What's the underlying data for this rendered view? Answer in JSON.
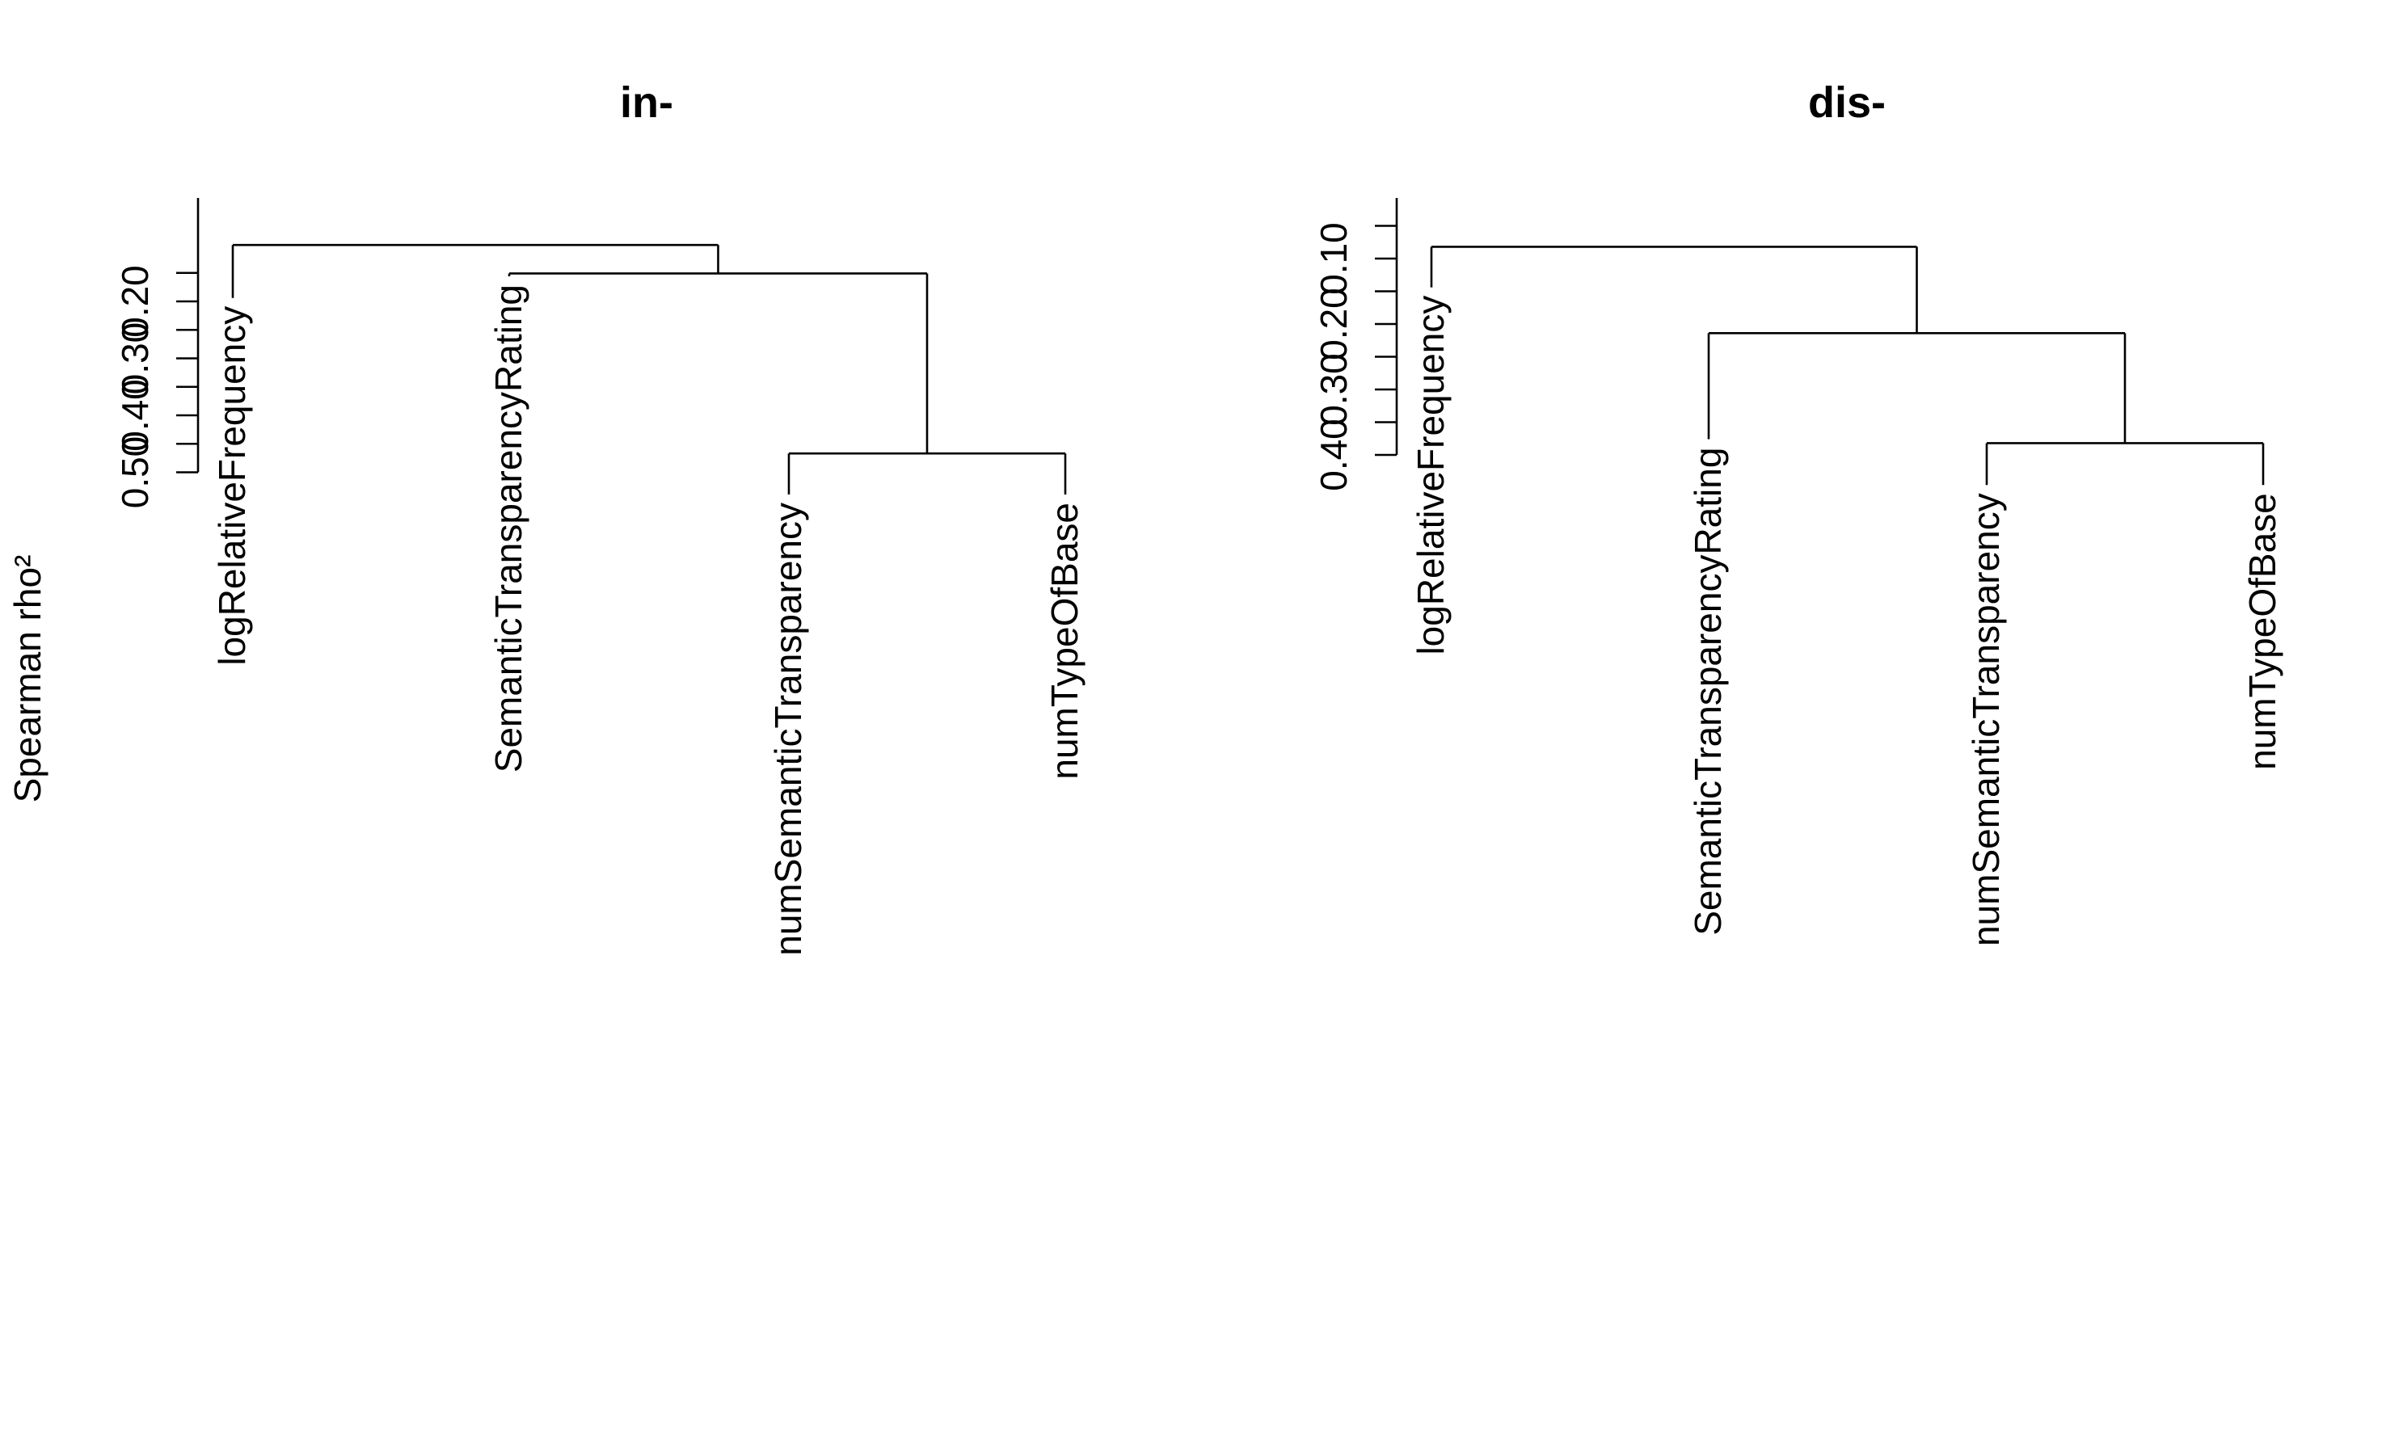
{
  "ylabel": "Spearman rho²",
  "chart_data": [
    {
      "type": "dendrogram",
      "title": "in-",
      "ylabel": "Spearman rho²",
      "y_axis_ticks": [
        "0.20",
        "0.30",
        "0.40",
        "0.50"
      ],
      "leaves": [
        "logRelativeFrequency",
        "SemanticTransparencyRating",
        "numSemanticTransparency",
        "numTypeOfBase"
      ],
      "merges": [
        {
          "left": "numSemanticTransparency",
          "right": "numTypeOfBase",
          "height": 0.467
        },
        {
          "left": "SemanticTransparencyRating",
          "right": "cluster(numSemanticTransparency, numTypeOfBase)",
          "height": 0.151
        },
        {
          "left": "logRelativeFrequency",
          "right": "cluster(SemanticTransparencyRating, numSemanticTransparency, numTypeOfBase)",
          "height": 0.101
        }
      ],
      "leaf_heights": [
        0.194,
        0.156,
        0.539,
        0.539
      ]
    },
    {
      "type": "dendrogram",
      "title": "dis-",
      "ylabel": "Spearman rho²",
      "y_axis_ticks": [
        "0.10",
        "0.20",
        "0.30",
        "0.40"
      ],
      "leaves": [
        "logRelativeFrequency",
        "SemanticTransparencyRating",
        "numSemanticTransparency",
        "numTypeOfBase"
      ],
      "merges": [
        {
          "left": "numSemanticTransparency",
          "right": "numTypeOfBase",
          "height": 0.382
        },
        {
          "left": "SemanticTransparencyRating",
          "right": "cluster(numSemanticTransparency, numTypeOfBase)",
          "height": 0.214
        },
        {
          "left": "logRelativeFrequency",
          "right": "cluster(SemanticTransparencyRating, numSemanticTransparency, numTypeOfBase)",
          "height": 0.082
        }
      ],
      "leaf_heights": [
        0.144,
        0.376,
        0.446,
        0.446
      ]
    }
  ]
}
